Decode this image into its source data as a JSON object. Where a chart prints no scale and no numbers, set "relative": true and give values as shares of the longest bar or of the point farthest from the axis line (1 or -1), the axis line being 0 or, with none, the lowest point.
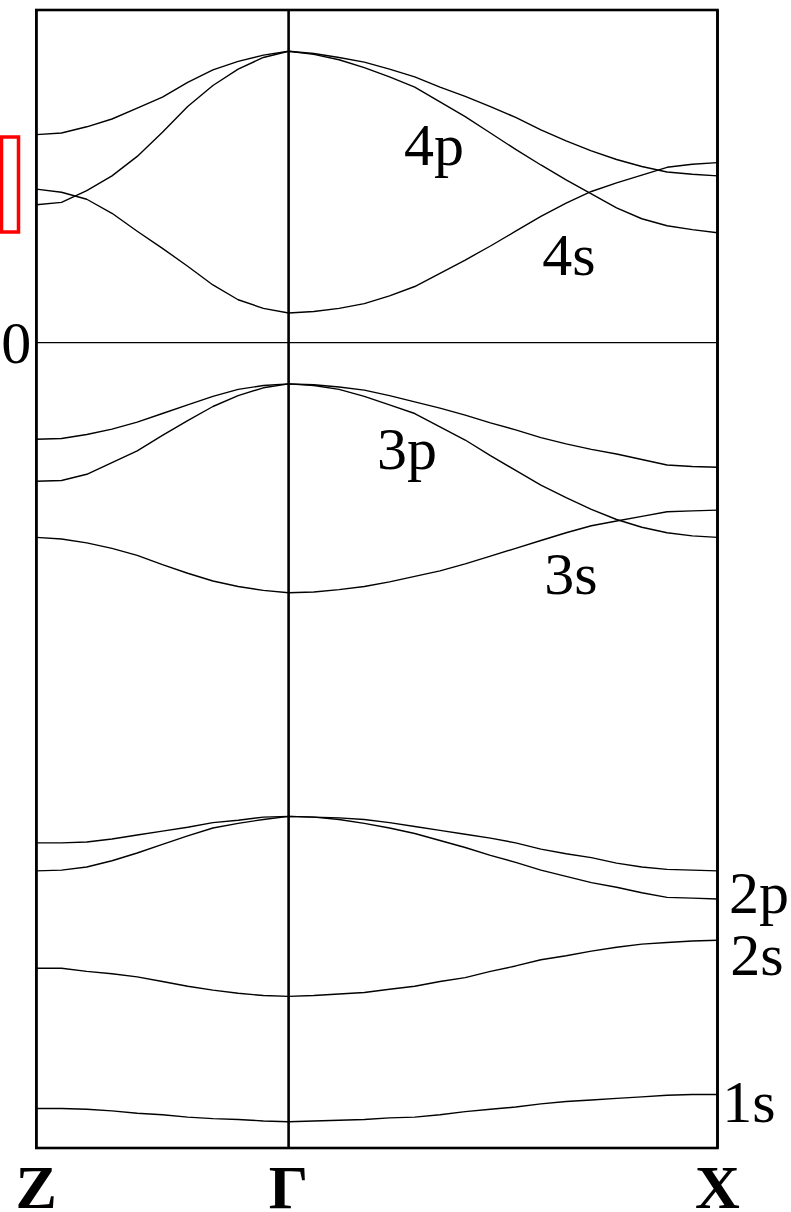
{
  "chart_data": {
    "type": "line",
    "relative": true,
    "grid": "x",
    "categories": [
      "Z",
      null,
      null,
      null,
      null,
      null,
      null,
      null,
      null,
      null,
      "Γ",
      null,
      null,
      null,
      null,
      null,
      null,
      null,
      null,
      null,
      null,
      null,
      null,
      null,
      null,
      null,
      null,
      "X"
    ],
    "series": [
      {
        "color": "#000000",
        "values": [
          0.267,
          0.269,
          0.277,
          0.287,
          0.301,
          0.315,
          0.334,
          0.35,
          0.361,
          0.369,
          0.374,
          0.371,
          0.366,
          0.36,
          0.351,
          0.341,
          0.328,
          0.316,
          0.303,
          0.289,
          0.273,
          0.259,
          0.246,
          0.235,
          0.226,
          0.219,
          0.216,
          0.214
        ]
      },
      {
        "color": "#000000",
        "values": [
          0.177,
          0.18,
          0.195,
          0.214,
          0.239,
          0.27,
          0.303,
          0.33,
          0.351,
          0.366,
          0.374,
          0.37,
          0.363,
          0.353,
          0.341,
          0.328,
          0.309,
          0.29,
          0.269,
          0.248,
          0.228,
          0.209,
          0.191,
          0.173,
          0.159,
          0.15,
          0.145,
          0.141
        ]
      },
      {
        "color": "#000000",
        "values": [
          0.197,
          0.193,
          0.184,
          0.166,
          0.143,
          0.121,
          0.098,
          0.074,
          0.055,
          0.044,
          0.038,
          0.04,
          0.044,
          0.05,
          0.06,
          0.072,
          0.089,
          0.106,
          0.124,
          0.143,
          0.162,
          0.179,
          0.194,
          0.205,
          0.215,
          0.225,
          0.229,
          0.231
        ]
      },
      {
        "color": "#000000",
        "values": [
          -0.124,
          -0.123,
          -0.118,
          -0.111,
          -0.102,
          -0.091,
          -0.08,
          -0.069,
          -0.06,
          -0.055,
          -0.053,
          -0.054,
          -0.057,
          -0.061,
          -0.068,
          -0.076,
          -0.084,
          -0.093,
          -0.103,
          -0.112,
          -0.122,
          -0.13,
          -0.137,
          -0.143,
          -0.15,
          -0.157,
          -0.159,
          -0.16
        ]
      },
      {
        "color": "#000000",
        "values": [
          -0.178,
          -0.177,
          -0.169,
          -0.154,
          -0.139,
          -0.119,
          -0.1,
          -0.082,
          -0.068,
          -0.058,
          -0.053,
          -0.055,
          -0.06,
          -0.069,
          -0.08,
          -0.091,
          -0.108,
          -0.125,
          -0.145,
          -0.164,
          -0.183,
          -0.199,
          -0.214,
          -0.227,
          -0.237,
          -0.244,
          -0.248,
          -0.25
        ]
      },
      {
        "color": "#000000",
        "values": [
          -0.25,
          -0.252,
          -0.257,
          -0.264,
          -0.273,
          -0.285,
          -0.296,
          -0.306,
          -0.313,
          -0.318,
          -0.321,
          -0.32,
          -0.317,
          -0.313,
          -0.307,
          -0.3,
          -0.293,
          -0.284,
          -0.274,
          -0.264,
          -0.254,
          -0.244,
          -0.235,
          -0.229,
          -0.223,
          -0.217,
          -0.216,
          -0.215
        ]
      },
      {
        "color": "#000000",
        "values": [
          -0.642,
          -0.642,
          -0.641,
          -0.637,
          -0.632,
          -0.627,
          -0.622,
          -0.616,
          -0.613,
          -0.609,
          -0.608,
          -0.609,
          -0.61,
          -0.612,
          -0.616,
          -0.621,
          -0.626,
          -0.631,
          -0.636,
          -0.642,
          -0.65,
          -0.656,
          -0.661,
          -0.668,
          -0.673,
          -0.676,
          -0.677,
          -0.678
        ]
      },
      {
        "color": "#000000",
        "values": [
          -0.678,
          -0.677,
          -0.673,
          -0.665,
          -0.655,
          -0.644,
          -0.633,
          -0.623,
          -0.617,
          -0.612,
          -0.608,
          -0.609,
          -0.612,
          -0.617,
          -0.623,
          -0.63,
          -0.639,
          -0.648,
          -0.658,
          -0.667,
          -0.677,
          -0.685,
          -0.693,
          -0.699,
          -0.706,
          -0.712,
          -0.713,
          -0.714
        ]
      },
      {
        "color": "#000000",
        "values": [
          -0.803,
          -0.803,
          -0.807,
          -0.81,
          -0.814,
          -0.82,
          -0.826,
          -0.831,
          -0.835,
          -0.838,
          -0.839,
          -0.838,
          -0.836,
          -0.834,
          -0.83,
          -0.826,
          -0.82,
          -0.815,
          -0.807,
          -0.8,
          -0.792,
          -0.787,
          -0.781,
          -0.776,
          -0.772,
          -0.77,
          -0.768,
          -0.767
        ]
      },
      {
        "color": "#000000",
        "values": [
          -0.983,
          -0.983,
          -0.984,
          -0.986,
          -0.989,
          -0.991,
          -0.994,
          -0.996,
          -0.997,
          -0.999,
          -1.0,
          -0.999,
          -0.998,
          -0.997,
          -0.995,
          -0.994,
          -0.991,
          -0.987,
          -0.984,
          -0.981,
          -0.977,
          -0.974,
          -0.972,
          -0.97,
          -0.968,
          -0.966,
          -0.965,
          -0.965
        ]
      }
    ],
    "ref_lines": [
      {
        "axis": "y",
        "value": 0,
        "label": "0"
      }
    ],
    "annotations": [
      "4p",
      "4s",
      "3p",
      "3s",
      "2p",
      "2s",
      "1s"
    ]
  }
}
